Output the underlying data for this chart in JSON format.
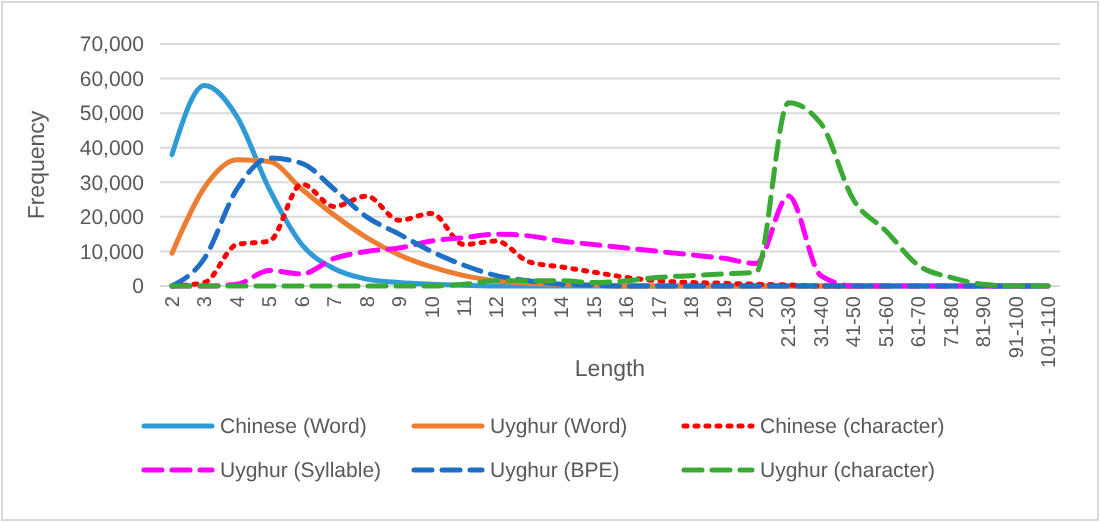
{
  "chart_data": {
    "type": "line",
    "xlabel": "Length",
    "ylabel": "Frequency",
    "categories": [
      "2",
      "3",
      "4",
      "5",
      "6",
      "7",
      "8",
      "9",
      "10",
      "11",
      "12",
      "13",
      "14",
      "15",
      "16",
      "17",
      "18",
      "19",
      "20",
      "21-30",
      "31-40",
      "41-50",
      "51-60",
      "61-70",
      "71-80",
      "81-90",
      "91-100",
      "101-110"
    ],
    "ylim": [
      0,
      70000
    ],
    "yticks": [
      {
        "value": 0,
        "label": "0"
      },
      {
        "value": 10000,
        "label": "10,000"
      },
      {
        "value": 20000,
        "label": "20,000"
      },
      {
        "value": 30000,
        "label": "30,000"
      },
      {
        "value": 40000,
        "label": "40,000"
      },
      {
        "value": 50000,
        "label": "50,000"
      },
      {
        "value": 60000,
        "label": "60,000"
      },
      {
        "value": 70000,
        "label": "70,000"
      }
    ],
    "grid": "y",
    "legend": "bottom",
    "marker": "none",
    "series": [
      {
        "name": "Chinese (Word)",
        "color": "#2e9bd6",
        "line_style": "solid",
        "values": [
          38000,
          58000,
          49000,
          28000,
          12000,
          5000,
          2000,
          1000,
          500,
          200,
          0,
          0,
          0,
          0,
          0,
          0,
          0,
          0,
          0,
          0,
          0,
          0,
          0,
          0,
          0,
          0,
          0,
          0
        ]
      },
      {
        "name": "Uyghur (Word)",
        "color": "#ed7d31",
        "line_style": "solid",
        "values": [
          9500,
          28500,
          36500,
          36000,
          28000,
          20500,
          14000,
          9000,
          5500,
          3000,
          1500,
          800,
          400,
          200,
          0,
          0,
          0,
          0,
          0,
          0,
          0,
          0,
          0,
          null,
          null,
          null,
          null,
          null
        ]
      },
      {
        "name": "Chinese (character)",
        "color": "#ff0000",
        "line_style": "dotted",
        "values": [
          0,
          1000,
          12000,
          13000,
          29500,
          23000,
          26000,
          19000,
          21000,
          12000,
          13000,
          7000,
          5500,
          4000,
          2500,
          1500,
          1000,
          800,
          500,
          300,
          0,
          0,
          null,
          null,
          null,
          null,
          null,
          null
        ]
      },
      {
        "name": "Uyghur (Syllable)",
        "color": "#ff00ff",
        "line_style": "dashed",
        "values": [
          0,
          0,
          500,
          4500,
          3500,
          8000,
          10000,
          11000,
          13000,
          14000,
          15000,
          14500,
          13000,
          12000,
          11000,
          10000,
          9000,
          8000,
          6500,
          26000,
          3000,
          0,
          0,
          0,
          0,
          0,
          0,
          0
        ]
      },
      {
        "name": "Uyghur (BPE)",
        "color": "#1f6fc6",
        "line_style": "dashed",
        "values": [
          0,
          8000,
          28000,
          37000,
          35500,
          28000,
          20000,
          15000,
          10000,
          6000,
          3000,
          1500,
          500,
          200,
          0,
          0,
          0,
          0,
          0,
          0,
          0,
          0,
          0,
          0,
          0,
          0,
          0,
          0
        ]
      },
      {
        "name": "Uyghur (character)",
        "color": "#3aaa35",
        "line_style": "dashed",
        "values": [
          0,
          0,
          0,
          0,
          0,
          0,
          0,
          0,
          0,
          500,
          1500,
          1500,
          1500,
          1000,
          1500,
          2500,
          3000,
          3500,
          4000,
          53000,
          47000,
          25000,
          16000,
          6000,
          2500,
          500,
          0,
          0
        ]
      }
    ]
  }
}
